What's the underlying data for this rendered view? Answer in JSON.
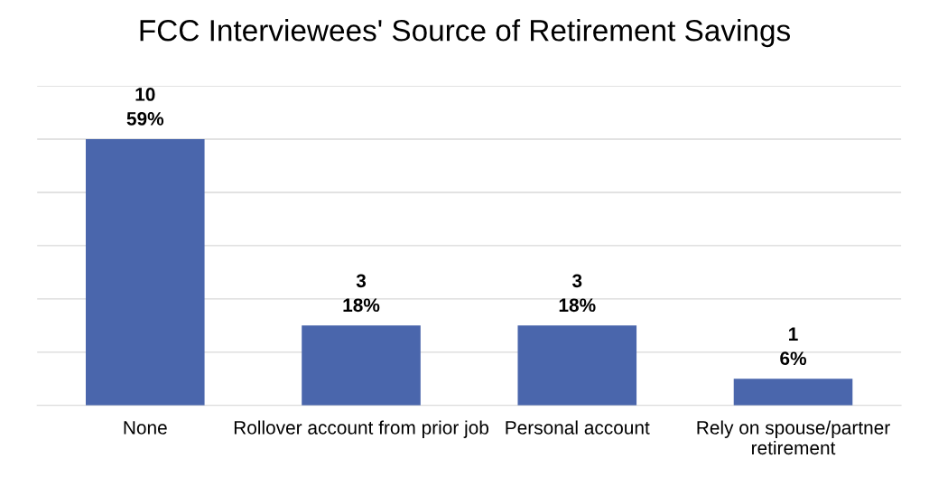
{
  "chart_data": {
    "type": "bar",
    "title": "FCC Interviewees' Source of Retirement Savings",
    "categories": [
      "None",
      "Rollover account from prior job",
      "Personal account",
      "Rely on spouse/partner retirement"
    ],
    "values": [
      10,
      3,
      3,
      1
    ],
    "color": "#4a66ac",
    "value_labels": [
      "10\n59%",
      "3\n18%",
      "3\n18%",
      "1\n6%"
    ],
    "ylim": [
      0,
      12
    ],
    "yticks": [
      {
        "value": 0,
        "label": null
      },
      {
        "value": 2,
        "label": null
      },
      {
        "value": 4,
        "label": null
      },
      {
        "value": 6,
        "label": null
      },
      {
        "value": 8,
        "label": null
      },
      {
        "value": 10,
        "label": null
      },
      {
        "value": 12,
        "label": null
      }
    ],
    "grid": "y",
    "tick_labels": "x"
  }
}
